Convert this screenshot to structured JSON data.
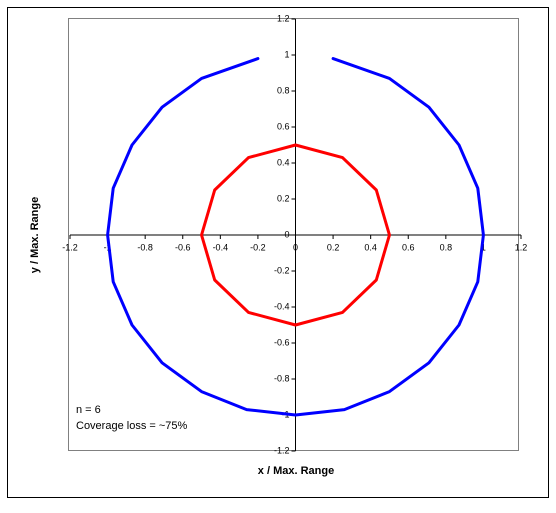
{
  "chart_data": {
    "type": "line",
    "xlabel": "x / Max. Range",
    "ylabel": "y / Max. Range",
    "annotations": [
      "n = 6",
      "Coverage loss = ~75%"
    ],
    "xlim": [
      -1.2,
      1.2
    ],
    "ylim": [
      -1.2,
      1.2
    ],
    "xticks": [
      -1.2,
      -1,
      -0.8,
      -0.6,
      -0.4,
      -0.2,
      0,
      0.2,
      0.4,
      0.6,
      0.8,
      1,
      1.2
    ],
    "yticks": [
      -1.2,
      -1,
      -0.8,
      -0.6,
      -0.4,
      -0.2,
      0,
      0.2,
      0.4,
      0.6,
      0.8,
      1,
      1.2
    ],
    "grid": false,
    "series": [
      {
        "color": "#0000ff",
        "x": [
          0.2,
          0.5,
          0.71,
          0.87,
          0.97,
          1,
          0.97,
          0.87,
          0.71,
          0.5,
          0.26,
          0,
          -0.26,
          -0.5,
          -0.71,
          -0.87,
          -0.97,
          -1,
          -0.97,
          -0.87,
          -0.71,
          -0.5,
          -0.2
        ],
        "y": [
          0.98,
          0.87,
          0.71,
          0.5,
          0.26,
          0,
          -0.26,
          -0.5,
          -0.71,
          -0.87,
          -0.97,
          -1,
          -0.97,
          -0.87,
          -0.71,
          -0.5,
          -0.26,
          0,
          0.26,
          0.5,
          0.71,
          0.87,
          0.98
        ]
      },
      {
        "color": "#ff0000",
        "x": [
          0,
          0.25,
          0.43,
          0.5,
          0.43,
          0.25,
          0,
          -0.25,
          -0.43,
          -0.5,
          -0.43,
          -0.25,
          0
        ],
        "y": [
          0.5,
          0.43,
          0.25,
          0,
          -0.25,
          -0.43,
          -0.5,
          -0.43,
          -0.25,
          0,
          0.25,
          0.43,
          0.5
        ]
      }
    ]
  }
}
